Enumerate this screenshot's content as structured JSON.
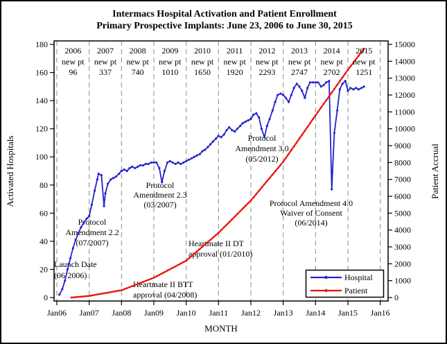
{
  "title": {
    "line1": "Intermacs Hospital Activation and Patient Enrollment",
    "line2": "Primary Prospective Implants: June 23, 2006 to June 30, 2015"
  },
  "legend": {
    "items": [
      {
        "label": "Hospital",
        "color": "#2222cc"
      },
      {
        "label": "Patient",
        "color": "#e8140c"
      }
    ]
  },
  "chart_data": {
    "type": "line",
    "title": "Intermacs Hospital Activation and Patient Enrollment",
    "subtitle": "Primary Prospective Implants: June 23, 2006 to June 30, 2015",
    "grid": "vertical dashed lines at each January",
    "legend_position": "bottom-right inside plot",
    "x_axis": {
      "label": "MONTH",
      "tick_labels": [
        "Jan06",
        "Jan07",
        "Jan08",
        "Jan09",
        "Jan10",
        "Jan11",
        "Jan12",
        "Jan13",
        "Jan14",
        "Jan15",
        "Jan16"
      ],
      "min": 2006,
      "max": 2016
    },
    "y_left": {
      "label": "Activated Hospitals",
      "min": 0,
      "max": 180,
      "step": 20
    },
    "y_right": {
      "label": "Patient Accrual",
      "min": 0,
      "max": 15000,
      "step": 1000
    },
    "yearly_new_patients": {
      "row_label": "new pt",
      "years": [
        "2006",
        "2007",
        "2008",
        "2009",
        "2010",
        "2011",
        "2012",
        "2013",
        "2014",
        "2015"
      ],
      "values": [
        96,
        337,
        740,
        1010,
        1650,
        1920,
        2293,
        2747,
        2702,
        1251
      ]
    },
    "series": [
      {
        "name": "Hospital",
        "axis": "left",
        "color": "#2222cc",
        "points": [
          [
            2006.08,
            2
          ],
          [
            2006.17,
            6
          ],
          [
            2006.25,
            12
          ],
          [
            2006.33,
            20
          ],
          [
            2006.42,
            28
          ],
          [
            2006.5,
            35
          ],
          [
            2006.58,
            41
          ],
          [
            2006.67,
            46
          ],
          [
            2006.75,
            50
          ],
          [
            2006.83,
            53
          ],
          [
            2006.92,
            56
          ],
          [
            2007.0,
            58
          ],
          [
            2007.08,
            66
          ],
          [
            2007.17,
            76
          ],
          [
            2007.25,
            84
          ],
          [
            2007.29,
            88
          ],
          [
            2007.38,
            87
          ],
          [
            2007.46,
            65
          ],
          [
            2007.5,
            74
          ],
          [
            2007.58,
            81
          ],
          [
            2007.67,
            84
          ],
          [
            2007.75,
            85
          ],
          [
            2007.83,
            86
          ],
          [
            2007.92,
            88
          ],
          [
            2008.0,
            90
          ],
          [
            2008.08,
            91
          ],
          [
            2008.17,
            90
          ],
          [
            2008.25,
            92
          ],
          [
            2008.33,
            93
          ],
          [
            2008.42,
            92
          ],
          [
            2008.5,
            93
          ],
          [
            2008.58,
            94
          ],
          [
            2008.67,
            94
          ],
          [
            2008.75,
            95
          ],
          [
            2008.83,
            95
          ],
          [
            2008.92,
            96
          ],
          [
            2009.0,
            96
          ],
          [
            2009.08,
            96
          ],
          [
            2009.17,
            92
          ],
          [
            2009.25,
            82
          ],
          [
            2009.33,
            90
          ],
          [
            2009.42,
            96
          ],
          [
            2009.5,
            97
          ],
          [
            2009.58,
            96
          ],
          [
            2009.67,
            95
          ],
          [
            2009.75,
            96
          ],
          [
            2009.83,
            95
          ],
          [
            2009.92,
            96
          ],
          [
            2010.0,
            97
          ],
          [
            2010.08,
            98
          ],
          [
            2010.17,
            99
          ],
          [
            2010.25,
            100
          ],
          [
            2010.33,
            101
          ],
          [
            2010.42,
            102
          ],
          [
            2010.5,
            104
          ],
          [
            2010.58,
            105
          ],
          [
            2010.67,
            107
          ],
          [
            2010.75,
            109
          ],
          [
            2010.83,
            111
          ],
          [
            2010.92,
            113
          ],
          [
            2011.0,
            115
          ],
          [
            2011.08,
            114
          ],
          [
            2011.17,
            116
          ],
          [
            2011.25,
            119
          ],
          [
            2011.33,
            121
          ],
          [
            2011.42,
            119
          ],
          [
            2011.5,
            118
          ],
          [
            2011.58,
            120
          ],
          [
            2011.67,
            122
          ],
          [
            2011.75,
            124
          ],
          [
            2011.83,
            125
          ],
          [
            2011.92,
            126
          ],
          [
            2012.0,
            127
          ],
          [
            2012.08,
            130
          ],
          [
            2012.17,
            131
          ],
          [
            2012.25,
            128
          ],
          [
            2012.33,
            120
          ],
          [
            2012.42,
            114
          ],
          [
            2012.5,
            122
          ],
          [
            2012.58,
            127
          ],
          [
            2012.67,
            133
          ],
          [
            2012.75,
            139
          ],
          [
            2012.83,
            144
          ],
          [
            2012.92,
            145
          ],
          [
            2013.0,
            144
          ],
          [
            2013.08,
            142
          ],
          [
            2013.17,
            139
          ],
          [
            2013.25,
            144
          ],
          [
            2013.33,
            149
          ],
          [
            2013.42,
            152
          ],
          [
            2013.5,
            150
          ],
          [
            2013.58,
            147
          ],
          [
            2013.67,
            142
          ],
          [
            2013.75,
            149
          ],
          [
            2013.83,
            153
          ],
          [
            2013.92,
            153
          ],
          [
            2014.0,
            153
          ],
          [
            2014.08,
            153
          ],
          [
            2014.17,
            150
          ],
          [
            2014.25,
            151
          ],
          [
            2014.33,
            153
          ],
          [
            2014.42,
            154
          ],
          [
            2014.5,
            77
          ],
          [
            2014.58,
            117
          ],
          [
            2014.67,
            133
          ],
          [
            2014.75,
            148
          ],
          [
            2014.83,
            152
          ],
          [
            2014.92,
            154
          ],
          [
            2015.0,
            147
          ],
          [
            2015.08,
            149
          ],
          [
            2015.17,
            148
          ],
          [
            2015.25,
            149
          ],
          [
            2015.33,
            148
          ],
          [
            2015.42,
            149
          ],
          [
            2015.5,
            150
          ]
        ]
      },
      {
        "name": "Patient",
        "axis": "right",
        "color": "#e8140c",
        "points": [
          [
            2006.45,
            0
          ],
          [
            2007,
            96
          ],
          [
            2008,
            433
          ],
          [
            2009,
            1173
          ],
          [
            2010,
            2183
          ],
          [
            2011,
            3833
          ],
          [
            2012,
            5753
          ],
          [
            2013,
            8046
          ],
          [
            2014,
            10793
          ],
          [
            2015,
            13495
          ],
          [
            2015.5,
            14746
          ]
        ]
      }
    ],
    "annotations": [
      {
        "id": "launch",
        "align": "start",
        "x": 76,
        "baselines": [
          383,
          399
        ],
        "lines": [
          "Launch Date",
          "(06/2006)"
        ]
      },
      {
        "id": "pa22",
        "align": "middle",
        "x": 131,
        "baselines": [
          322,
          337,
          352
        ],
        "lines": [
          "Protocol",
          "Amendment 2.2",
          "(07/2007)"
        ]
      },
      {
        "id": "pa23",
        "align": "middle",
        "x": 229,
        "baselines": [
          269,
          283,
          297
        ],
        "lines": [
          "Protocol",
          "Amendment 2.3",
          "(03/2007)"
        ]
      },
      {
        "id": "hm-btt",
        "align": "start",
        "x": 190,
        "baselines": [
          412,
          427
        ],
        "lines": [
          "Heartmate II BTT",
          "approval (04/2008)"
        ]
      },
      {
        "id": "hm-dt",
        "align": "start",
        "x": 270,
        "baselines": [
          353,
          368
        ],
        "lines": [
          "Heartmate II DT",
          "approval (01/2010)"
        ]
      },
      {
        "id": "pa30",
        "align": "middle",
        "x": 376,
        "baselines": [
          201,
          216,
          231
        ],
        "lines": [
          "Protocol",
          "Amendment 3.0",
          "(05/2012)"
        ]
      },
      {
        "id": "pa40",
        "align": "middle",
        "x": 447,
        "baselines": [
          295,
          309,
          323
        ],
        "lines": [
          "Protocol Amendment 4.0",
          "Waiver of Consent",
          "(06/2014)"
        ]
      }
    ]
  }
}
